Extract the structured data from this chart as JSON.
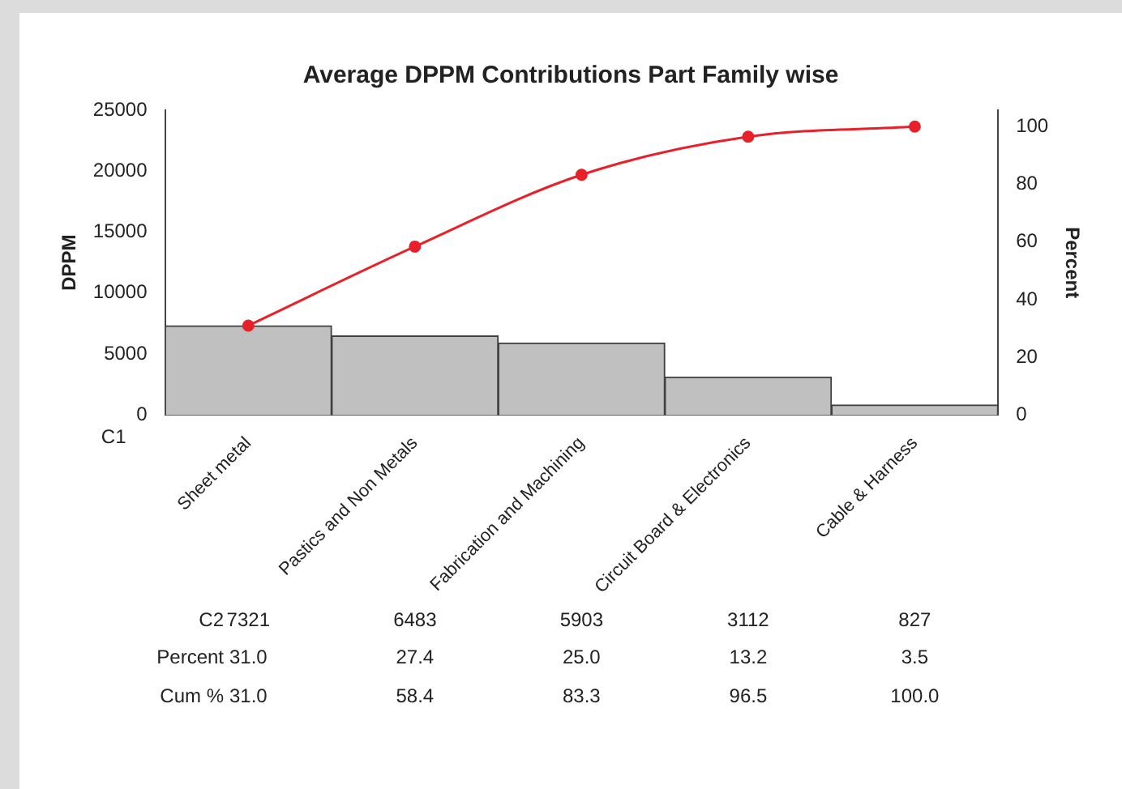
{
  "chart_data": {
    "type": "bar",
    "title": "Average DPPM Contributions Part Family wise",
    "xlabel": "C1",
    "ylabel": "DPPM",
    "y2label": "Percent",
    "categories": [
      "Sheet metal",
      "Pastics and Non Metals",
      "Fabrication and Machining",
      "Circuit Board & Electronics",
      "Cable & Harness"
    ],
    "series": [
      {
        "color": "#c0c0c0",
        "values": [
          7321,
          6483,
          5903,
          3112,
          827
        ],
        "value_labels": [
          "7321",
          "6483",
          "5903",
          "3112",
          "827"
        ]
      },
      {
        "type": "line",
        "axis": "y2",
        "color": "#e8202a",
        "values": [
          31.0,
          58.4,
          83.3,
          96.5,
          100.0
        ],
        "value_labels": [
          "31.0",
          "58.4",
          "83.3",
          "96.5",
          "100.0"
        ]
      }
    ],
    "annotations": [
      "C2",
      "Percent",
      "Cum %",
      "31.0",
      "27.4",
      "25.0",
      "13.2",
      "3.5"
    ],
    "ylim": [
      0,
      25000
    ],
    "yticks": [
      0,
      5000,
      10000,
      15000,
      20000,
      25000
    ],
    "y2lim": [
      0,
      105.7
    ],
    "y2ticks": [
      0,
      20,
      40,
      60,
      80,
      100
    ],
    "grid": false,
    "legend": false,
    "marker": "circle",
    "line_style": "solid"
  }
}
